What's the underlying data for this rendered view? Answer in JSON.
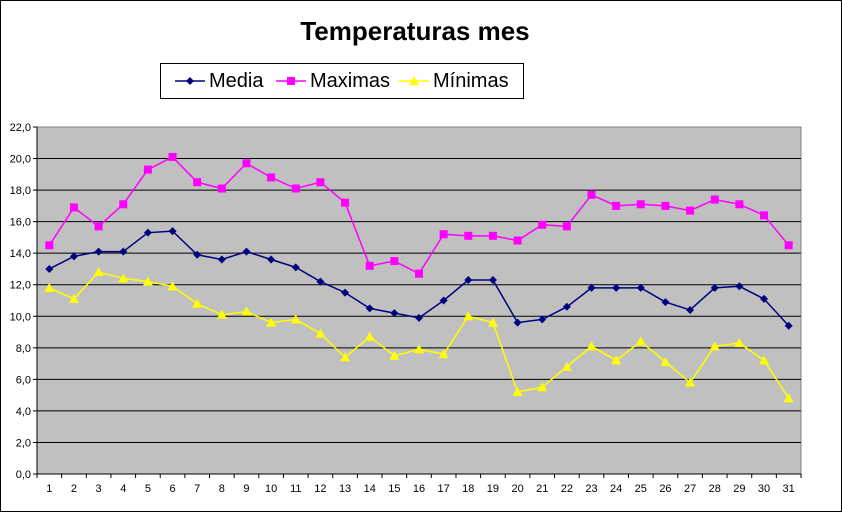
{
  "chart_data": {
    "type": "line",
    "title": "Temperaturas mes",
    "x": [
      1,
      2,
      3,
      4,
      5,
      6,
      7,
      8,
      9,
      10,
      11,
      12,
      13,
      14,
      15,
      16,
      17,
      18,
      19,
      20,
      21,
      22,
      23,
      24,
      25,
      26,
      27,
      28,
      29,
      30,
      31
    ],
    "ylim": [
      0,
      22
    ],
    "yticks": [
      "0,0",
      "2,0",
      "4,0",
      "6,0",
      "8,0",
      "10,0",
      "12,0",
      "14,0",
      "16,0",
      "18,0",
      "20,0",
      "22,0"
    ],
    "grid": true,
    "legend": "top",
    "series": [
      {
        "name": "Media",
        "color": "#000080",
        "marker": "diamond",
        "values": [
          13.0,
          13.8,
          14.1,
          14.1,
          15.3,
          15.4,
          13.9,
          13.6,
          14.1,
          13.6,
          13.1,
          12.2,
          11.5,
          10.5,
          10.2,
          9.9,
          11.0,
          12.3,
          12.3,
          9.6,
          9.8,
          10.6,
          11.8,
          11.8,
          11.8,
          10.9,
          10.4,
          11.8,
          11.9,
          11.1,
          9.4
        ]
      },
      {
        "name": "Maximas",
        "color": "#ff00ff",
        "marker": "square",
        "values": [
          14.5,
          16.9,
          15.7,
          17.1,
          19.3,
          20.1,
          18.5,
          18.1,
          19.7,
          18.8,
          18.1,
          18.5,
          17.2,
          13.2,
          13.5,
          12.7,
          15.2,
          15.1,
          15.1,
          14.8,
          15.8,
          15.7,
          17.7,
          17.0,
          17.1,
          17.0,
          16.7,
          17.4,
          17.1,
          16.4,
          14.5
        ]
      },
      {
        "name": "Mínimas",
        "color": "#ffff00",
        "marker": "triangle",
        "values": [
          11.8,
          11.1,
          12.8,
          12.4,
          12.2,
          11.9,
          10.8,
          10.1,
          10.3,
          9.6,
          9.8,
          8.9,
          7.4,
          8.7,
          7.5,
          7.9,
          7.6,
          10.0,
          9.6,
          5.2,
          5.5,
          6.8,
          8.1,
          7.2,
          8.4,
          7.1,
          5.8,
          8.1,
          8.3,
          7.2,
          4.8
        ]
      }
    ]
  }
}
